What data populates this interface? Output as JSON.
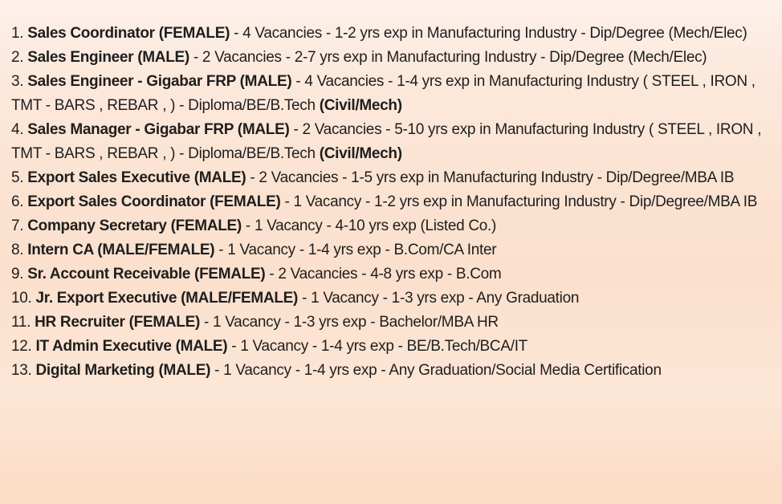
{
  "page": {
    "type": "job-vacancy-list",
    "background_top_color": "#fdf1ea",
    "background_bottom_color": "#fbdcc5",
    "text_color": "#1e1e1e"
  },
  "listings": [
    {
      "num": "1.",
      "title": "Sales Coordinator (FEMALE)",
      "details": " - 4 Vacancies - 1-2 yrs exp in Manufacturing Industry - Dip/Degree (Mech/Elec)",
      "bold_suffix": ""
    },
    {
      "num": "2.",
      "title": "Sales Engineer (MALE)",
      "details": " - 2 Vacancies - 2-7 yrs exp in Manufacturing Industry - Dip/Degree (Mech/Elec)",
      "bold_suffix": ""
    },
    {
      "num": "3.",
      "title": "Sales Engineer - Gigabar FRP (MALE)",
      "details": " - 4 Vacancies - 1-4 yrs exp in Manufacturing Industry ( STEEL , IRON , TMT - BARS , REBAR , ) - Diploma/BE/B.Tech ",
      "bold_suffix": "(Civil/Mech)"
    },
    {
      "num": "4.",
      "title": "Sales Manager - Gigabar FRP (MALE)",
      "details": " - 2 Vacancies - 5-10 yrs exp in Manufacturing Industry ( STEEL , IRON , TMT - BARS , REBAR , ) - Diploma/BE/B.Tech ",
      "bold_suffix": "(Civil/Mech)"
    },
    {
      "num": "5.",
      "title": "Export Sales Executive (MALE)",
      "details": " - 2 Vacancies - 1-5 yrs exp in Manufacturing Industry - Dip/Degree/MBA IB",
      "bold_suffix": ""
    },
    {
      "num": "6.",
      "title": "Export Sales Coordinator (FEMALE)",
      "details": " - 1 Vacancy - 1-2 yrs exp in Manufacturing Industry - Dip/Degree/MBA IB",
      "bold_suffix": ""
    },
    {
      "num": "7.",
      "title": "Company Secretary (FEMALE)",
      "details": " - 1 Vacancy - 4-10 yrs exp (Listed Co.)",
      "bold_suffix": ""
    },
    {
      "num": "8.",
      "title": "Intern CA (MALE/FEMALE)",
      "details": " - 1 Vacancy - 1-4 yrs exp - B.Com/CA Inter",
      "bold_suffix": ""
    },
    {
      "num": "9.",
      "title": "Sr. Account Receivable (FEMALE)",
      "details": " - 2 Vacancies - 4-8 yrs exp - B.Com",
      "bold_suffix": ""
    },
    {
      "num": "10.",
      "title": "Jr. Export Executive (MALE/FEMALE)",
      "details": " - 1 Vacancy - 1-3 yrs exp - Any Graduation",
      "bold_suffix": ""
    },
    {
      "num": "11.",
      "title": "HR Recruiter (FEMALE)",
      "details": " - 1 Vacancy - 1-3 yrs exp - Bachelor/MBA HR",
      "bold_suffix": ""
    },
    {
      "num": "12.",
      "title": "IT Admin Executive (MALE)",
      "details": " - 1 Vacancy - 1-4 yrs exp - BE/B.Tech/BCA/IT",
      "bold_suffix": ""
    },
    {
      "num": "13.",
      "title": "Digital Marketing (MALE)",
      "details": " - 1 Vacancy - 1-4 yrs exp - Any Graduation/Social Media Certification",
      "bold_suffix": ""
    }
  ]
}
